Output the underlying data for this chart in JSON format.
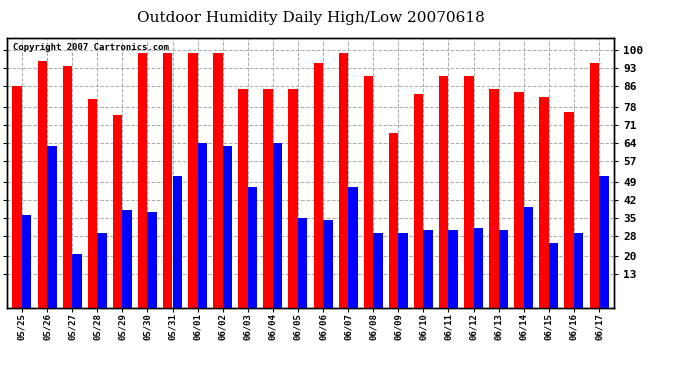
{
  "title": "Outdoor Humidity Daily High/Low 20070618",
  "copyright_text": "Copyright 2007 Cartronics.com",
  "dates": [
    "05/25",
    "05/26",
    "05/27",
    "05/28",
    "05/29",
    "05/30",
    "05/31",
    "06/01",
    "06/02",
    "06/03",
    "06/04",
    "06/05",
    "06/06",
    "06/07",
    "06/08",
    "06/09",
    "06/10",
    "06/11",
    "06/12",
    "06/13",
    "06/14",
    "06/15",
    "06/16",
    "06/17"
  ],
  "highs": [
    86,
    96,
    94,
    81,
    75,
    99,
    99,
    99,
    99,
    85,
    85,
    85,
    95,
    99,
    90,
    68,
    83,
    90,
    90,
    85,
    84,
    82,
    76,
    95
  ],
  "lows": [
    36,
    63,
    21,
    29,
    38,
    37,
    51,
    64,
    63,
    47,
    64,
    35,
    34,
    47,
    29,
    29,
    30,
    30,
    31,
    30,
    39,
    25,
    29,
    51
  ],
  "bar_color_high": "#ff0000",
  "bar_color_low": "#0000ff",
  "background_color": "#ffffff",
  "plot_bg_color": "#ffffff",
  "grid_color": "#aaaaaa",
  "yticks": [
    13,
    20,
    28,
    35,
    42,
    49,
    57,
    64,
    71,
    78,
    86,
    93,
    100
  ],
  "ylim": [
    0,
    105
  ],
  "title_fontsize": 11,
  "copyright_fontsize": 6.5
}
